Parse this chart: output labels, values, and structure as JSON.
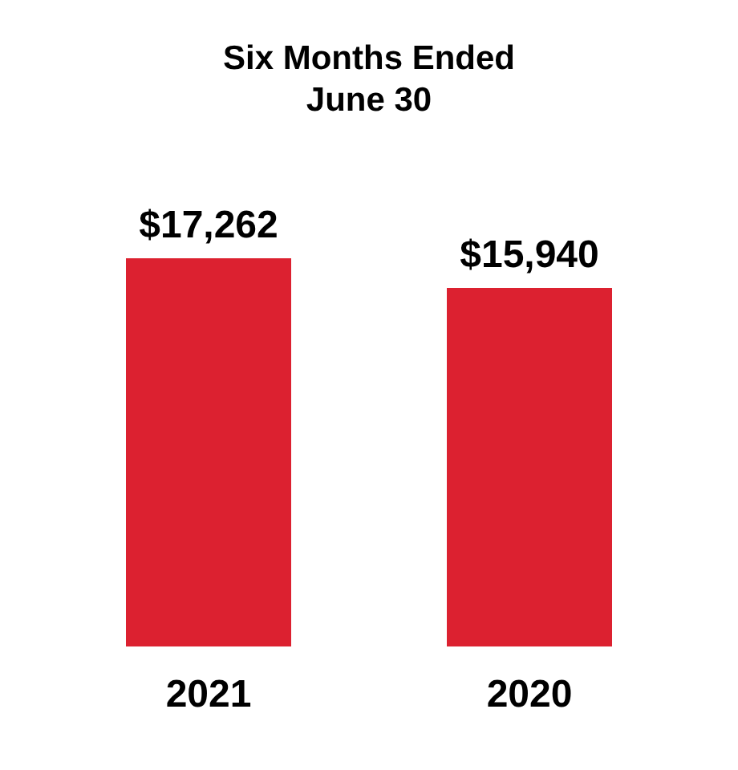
{
  "chart_data": {
    "type": "bar",
    "title": "Six Months Ended\nJune 30",
    "categories": [
      "2021",
      "2020"
    ],
    "values": [
      17262,
      15940
    ],
    "value_labels": [
      "$17,262",
      "$15,940"
    ],
    "color": "#dc2130"
  }
}
